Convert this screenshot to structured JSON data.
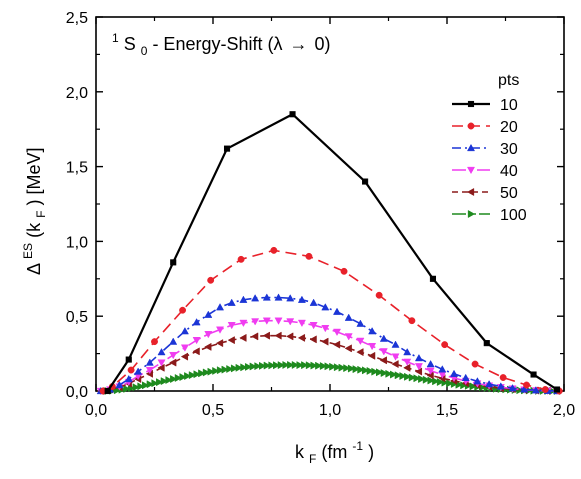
{
  "chart_data": {
    "type": "line",
    "annotation": {
      "superscript": "1",
      "main": "S",
      "subscript": "0",
      "rest": " - Energy-Shift (λ",
      "arrow": "→",
      "tail": "0)"
    },
    "xlabel": {
      "main": "k",
      "sub": "F",
      "rest": " (fm",
      "sup": "-1",
      "close": ")"
    },
    "ylabel": {
      "main": "Δ",
      "sup": "ES",
      "paren_open": "(k",
      "sub": "F",
      "rest": ") [MeV]"
    },
    "xlim": [
      0,
      2
    ],
    "ylim": [
      0,
      2.5
    ],
    "x_ticks": [
      0,
      0.5,
      1.0,
      1.5,
      2.0
    ],
    "x_tick_labels": [
      "0,0",
      "0,5",
      "1,0",
      "1,5",
      "2,0"
    ],
    "y_ticks": [
      0,
      0.5,
      1.0,
      1.5,
      2.0,
      2.5
    ],
    "y_tick_labels": [
      "0,0",
      "0,5",
      "1,0",
      "1,5",
      "2,0",
      "2,5"
    ],
    "legend_title": "pts",
    "legend_position": "top-right",
    "grid": false,
    "series": [
      {
        "name": "10",
        "color": "#000000",
        "dash": "",
        "marker": "square",
        "x": [
          0.05,
          0.14,
          0.33,
          0.56,
          0.84,
          1.15,
          1.44,
          1.67,
          1.87,
          1.97
        ],
        "y": [
          0.0,
          0.21,
          0.86,
          1.62,
          1.85,
          1.4,
          0.75,
          0.32,
          0.11,
          0.01
        ]
      },
      {
        "name": "20",
        "color": "#e8212a",
        "dash": "11,6",
        "marker": "circle",
        "x": [
          0.03,
          0.07,
          0.15,
          0.25,
          0.37,
          0.49,
          0.62,
          0.76,
          0.91,
          1.06,
          1.21,
          1.35,
          1.49,
          1.62,
          1.74,
          1.84,
          1.92,
          1.98
        ],
        "y": [
          0.0,
          0.03,
          0.14,
          0.33,
          0.54,
          0.74,
          0.88,
          0.94,
          0.9,
          0.8,
          0.64,
          0.47,
          0.31,
          0.18,
          0.09,
          0.04,
          0.01,
          0.0
        ]
      },
      {
        "name": "30",
        "color": "#1b35d6",
        "dash": "9,4,2,4",
        "marker": "triangle-up",
        "x": [
          0.02,
          0.06,
          0.1,
          0.14,
          0.18,
          0.23,
          0.28,
          0.33,
          0.38,
          0.43,
          0.48,
          0.53,
          0.58,
          0.63,
          0.68,
          0.73,
          0.78,
          0.83,
          0.88,
          0.93,
          0.98,
          1.03,
          1.08,
          1.13,
          1.18,
          1.23,
          1.28,
          1.33,
          1.38,
          1.43,
          1.48,
          1.53,
          1.58,
          1.63,
          1.68,
          1.73,
          1.78,
          1.83,
          1.88,
          1.93,
          1.97
        ],
        "y": [
          0.0,
          0.01,
          0.04,
          0.08,
          0.13,
          0.19,
          0.26,
          0.33,
          0.4,
          0.46,
          0.51,
          0.56,
          0.59,
          0.61,
          0.62,
          0.625,
          0.625,
          0.62,
          0.61,
          0.59,
          0.56,
          0.53,
          0.49,
          0.45,
          0.4,
          0.35,
          0.31,
          0.26,
          0.22,
          0.18,
          0.145,
          0.115,
          0.088,
          0.065,
          0.046,
          0.031,
          0.019,
          0.011,
          0.005,
          0.002,
          0.0
        ]
      },
      {
        "name": "40",
        "color": "#f03cf0",
        "dash": "14,4,3,4",
        "marker": "triangle-down",
        "x": [
          0.02,
          0.06,
          0.1,
          0.14,
          0.18,
          0.23,
          0.28,
          0.33,
          0.38,
          0.43,
          0.48,
          0.53,
          0.58,
          0.63,
          0.68,
          0.73,
          0.78,
          0.83,
          0.88,
          0.93,
          0.98,
          1.03,
          1.08,
          1.13,
          1.18,
          1.23,
          1.28,
          1.33,
          1.38,
          1.43,
          1.48,
          1.53,
          1.58,
          1.63,
          1.68,
          1.73,
          1.78,
          1.83,
          1.88,
          1.93,
          1.97
        ],
        "y": [
          0.0,
          0.01,
          0.03,
          0.06,
          0.1,
          0.14,
          0.19,
          0.24,
          0.29,
          0.34,
          0.38,
          0.41,
          0.44,
          0.455,
          0.465,
          0.47,
          0.47,
          0.465,
          0.455,
          0.44,
          0.42,
          0.395,
          0.365,
          0.335,
          0.3,
          0.265,
          0.23,
          0.195,
          0.165,
          0.135,
          0.11,
          0.087,
          0.067,
          0.05,
          0.036,
          0.025,
          0.016,
          0.009,
          0.004,
          0.001,
          0.0
        ]
      },
      {
        "name": "50",
        "color": "#8b1a1a",
        "dash": "6,4",
        "marker": "triangle-left",
        "x": [
          0.02,
          0.06,
          0.1,
          0.14,
          0.18,
          0.23,
          0.28,
          0.33,
          0.38,
          0.43,
          0.48,
          0.53,
          0.58,
          0.63,
          0.68,
          0.73,
          0.78,
          0.83,
          0.88,
          0.93,
          0.98,
          1.03,
          1.08,
          1.13,
          1.18,
          1.23,
          1.28,
          1.33,
          1.38,
          1.43,
          1.48,
          1.53,
          1.58,
          1.63,
          1.68,
          1.73,
          1.78,
          1.83,
          1.88,
          1.93,
          1.97
        ],
        "y": [
          0.0,
          0.01,
          0.025,
          0.05,
          0.08,
          0.115,
          0.155,
          0.19,
          0.23,
          0.265,
          0.295,
          0.32,
          0.34,
          0.355,
          0.365,
          0.37,
          0.37,
          0.365,
          0.355,
          0.345,
          0.33,
          0.31,
          0.285,
          0.26,
          0.235,
          0.205,
          0.18,
          0.155,
          0.13,
          0.105,
          0.085,
          0.068,
          0.052,
          0.039,
          0.028,
          0.019,
          0.012,
          0.007,
          0.003,
          0.001,
          0.0
        ]
      },
      {
        "name": "100",
        "color": "#1e8a1e",
        "dash": "14,3,2,3,2,3",
        "marker": "triangle-right",
        "x": [
          0.05,
          0.07,
          0.09,
          0.11,
          0.13,
          0.15,
          0.17,
          0.19,
          0.21,
          0.23,
          0.25,
          0.27,
          0.29,
          0.31,
          0.33,
          0.35,
          0.37,
          0.39,
          0.41,
          0.43,
          0.45,
          0.47,
          0.49,
          0.51,
          0.53,
          0.55,
          0.57,
          0.59,
          0.61,
          0.63,
          0.65,
          0.67,
          0.69,
          0.71,
          0.73,
          0.75,
          0.77,
          0.79,
          0.81,
          0.83,
          0.85,
          0.87,
          0.89,
          0.91,
          0.93,
          0.95,
          0.97,
          0.99,
          1.01,
          1.03,
          1.05,
          1.07,
          1.09,
          1.11,
          1.13,
          1.15,
          1.17,
          1.19,
          1.21,
          1.23,
          1.25,
          1.27,
          1.29,
          1.31,
          1.33,
          1.35,
          1.37,
          1.39,
          1.41,
          1.43,
          1.45,
          1.47,
          1.49,
          1.51,
          1.53,
          1.55,
          1.57,
          1.59,
          1.61,
          1.63,
          1.65,
          1.67,
          1.69,
          1.71,
          1.73,
          1.75,
          1.77,
          1.79,
          1.81,
          1.83,
          1.85,
          1.87,
          1.89,
          1.91,
          1.93,
          1.95,
          1.97
        ],
        "y": [
          0.0,
          0.002,
          0.005,
          0.009,
          0.014,
          0.019,
          0.025,
          0.031,
          0.038,
          0.045,
          0.052,
          0.059,
          0.066,
          0.073,
          0.08,
          0.087,
          0.093,
          0.1,
          0.106,
          0.112,
          0.118,
          0.124,
          0.129,
          0.134,
          0.139,
          0.143,
          0.147,
          0.151,
          0.155,
          0.158,
          0.161,
          0.164,
          0.166,
          0.168,
          0.17,
          0.171,
          0.172,
          0.173,
          0.174,
          0.174,
          0.174,
          0.173,
          0.173,
          0.172,
          0.17,
          0.169,
          0.167,
          0.165,
          0.162,
          0.159,
          0.156,
          0.153,
          0.15,
          0.146,
          0.142,
          0.138,
          0.134,
          0.129,
          0.125,
          0.12,
          0.115,
          0.11,
          0.105,
          0.1,
          0.095,
          0.09,
          0.085,
          0.08,
          0.075,
          0.07,
          0.065,
          0.06,
          0.056,
          0.051,
          0.047,
          0.042,
          0.038,
          0.035,
          0.031,
          0.027,
          0.024,
          0.021,
          0.018,
          0.015,
          0.013,
          0.011,
          0.009,
          0.007,
          0.005,
          0.004,
          0.003,
          0.002,
          0.001,
          0.0006,
          0.0003,
          0.0001,
          0.0
        ]
      }
    ]
  }
}
